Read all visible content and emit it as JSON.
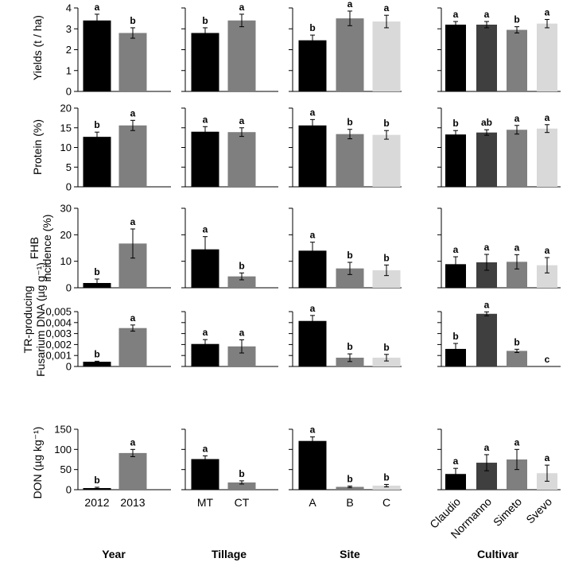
{
  "colors": [
    "#000000",
    "#3f3f3f",
    "#7f7f7f",
    "#d9d9d9"
  ],
  "chart_data": {
    "type": "bar",
    "factors": [
      {
        "name": "Year",
        "categories": [
          "2012",
          "2013"
        ]
      },
      {
        "name": "Tillage",
        "categories": [
          "MT",
          "CT"
        ]
      },
      {
        "name": "Site",
        "categories": [
          "A",
          "B",
          "C"
        ]
      },
      {
        "name": "Cultivar",
        "categories": [
          "Claudio",
          "Normanno",
          "Simeto",
          "Svevo"
        ]
      }
    ],
    "bar_colors": {
      "Year": [
        "#000000",
        "#7f7f7f"
      ],
      "Tillage": [
        "#000000",
        "#7f7f7f"
      ],
      "Site": [
        "#000000",
        "#7f7f7f",
        "#d9d9d9"
      ],
      "Cultivar": [
        "#000000",
        "#3f3f3f",
        "#7f7f7f",
        "#d9d9d9"
      ]
    },
    "rows": [
      {
        "ylabel": [
          "Yields (t / ha)"
        ],
        "ylim": [
          0,
          4
        ],
        "ticks": [
          "0",
          "1",
          "2",
          "3",
          "4"
        ],
        "values": {
          "Year": [
            3.4,
            2.8
          ],
          "Tillage": [
            2.8,
            3.4
          ],
          "Site": [
            2.45,
            3.5,
            3.35
          ],
          "Cultivar": [
            3.2,
            3.2,
            2.95,
            3.25
          ]
        },
        "errors": {
          "Year": [
            0.3,
            0.25
          ],
          "Tillage": [
            0.25,
            0.3
          ],
          "Site": [
            0.25,
            0.35,
            0.3
          ],
          "Cultivar": [
            0.15,
            0.15,
            0.15,
            0.2
          ]
        },
        "letters": {
          "Year": [
            "a",
            "b"
          ],
          "Tillage": [
            "b",
            "a"
          ],
          "Site": [
            "b",
            "a",
            "a"
          ],
          "Cultivar": [
            "a",
            "a",
            "b",
            "a"
          ]
        }
      },
      {
        "ylabel": [
          "Protein (%)"
        ],
        "ylim": [
          0,
          20
        ],
        "ticks": [
          "0",
          "5",
          "10",
          "15",
          "20"
        ],
        "values": {
          "Year": [
            12.7,
            15.6
          ],
          "Tillage": [
            14.0,
            13.9
          ],
          "Site": [
            15.6,
            13.4,
            13.2
          ],
          "Cultivar": [
            13.3,
            13.8,
            14.5,
            14.8
          ]
        },
        "errors": {
          "Year": [
            1.2,
            1.3
          ],
          "Tillage": [
            1.3,
            1.1
          ],
          "Site": [
            1.5,
            1.2,
            1.1
          ],
          "Cultivar": [
            1.0,
            0.7,
            1.1,
            1.0
          ]
        },
        "letters": {
          "Year": [
            "b",
            "a"
          ],
          "Tillage": [
            "a",
            "a"
          ],
          "Site": [
            "a",
            "b",
            "b"
          ],
          "Cultivar": [
            "b",
            "ab",
            "a",
            "a"
          ]
        }
      },
      {
        "ylabel": [
          "FHB",
          "incidence (%)"
        ],
        "ylim": [
          0,
          30
        ],
        "ticks": [
          "0",
          "10",
          "20",
          "30"
        ],
        "values": {
          "Year": [
            1.8,
            16.7
          ],
          "Tillage": [
            14.5,
            4.3
          ],
          "Site": [
            14.0,
            7.3,
            6.6
          ],
          "Cultivar": [
            8.9,
            9.6,
            9.8,
            8.5
          ]
        },
        "errors": {
          "Year": [
            1.5,
            5.5
          ],
          "Tillage": [
            4.8,
            1.3
          ],
          "Site": [
            3.2,
            2.3,
            2.0
          ],
          "Cultivar": [
            2.8,
            3.0,
            2.7,
            2.9
          ]
        },
        "letters": {
          "Year": [
            "b",
            "a"
          ],
          "Tillage": [
            "a",
            "b"
          ],
          "Site": [
            "a",
            "b",
            "b"
          ],
          "Cultivar": [
            "a",
            "a",
            "a",
            "a"
          ]
        }
      },
      {
        "ylabel": [
          "TR-producing",
          "Fusarium DNA (µg g⁻¹)"
        ],
        "ylim": [
          0,
          0.005
        ],
        "ticks": [
          "0",
          "0,001",
          "0,002",
          "0,003",
          "0,004",
          "0,005"
        ],
        "values": {
          "Year": [
            0.00043,
            0.0035
          ],
          "Tillage": [
            0.00205,
            0.00183
          ],
          "Site": [
            0.00415,
            0.0008,
            0.0008
          ],
          "Cultivar": [
            0.0016,
            0.0048,
            0.00142,
            0.0
          ]
        },
        "errors": {
          "Year": [
            5e-05,
            0.00028
          ],
          "Tillage": [
            0.0004,
            0.0006
          ],
          "Site": [
            0.0005,
            0.00035,
            0.0003
          ],
          "Cultivar": [
            0.0005,
            0.00018,
            0.00015,
            0.0
          ]
        },
        "letters": {
          "Year": [
            "b",
            "a"
          ],
          "Tillage": [
            "a",
            "a"
          ],
          "Site": [
            "a",
            "b",
            "b"
          ],
          "Cultivar": [
            "b",
            "a",
            "b",
            "c"
          ]
        }
      },
      {
        "ylabel": [
          "DON (µg kg⁻¹)"
        ],
        "ylim": [
          0,
          150
        ],
        "ticks": [
          "0",
          "50",
          "100",
          "150"
        ],
        "values": {
          "Year": [
            4,
            91
          ],
          "Tillage": [
            76,
            18
          ],
          "Site": [
            121,
            7,
            10
          ],
          "Cultivar": [
            39,
            67,
            75,
            41
          ]
        },
        "errors": {
          "Year": [
            2,
            9
          ],
          "Tillage": [
            8,
            4
          ],
          "Site": [
            10,
            2,
            3
          ],
          "Cultivar": [
            14,
            20,
            25,
            20
          ]
        },
        "letters": {
          "Year": [
            "b",
            "a"
          ],
          "Tillage": [
            "a",
            "b"
          ],
          "Site": [
            "a",
            "b",
            "b"
          ],
          "Cultivar": [
            "a",
            "a",
            "a",
            "a"
          ]
        }
      }
    ]
  }
}
